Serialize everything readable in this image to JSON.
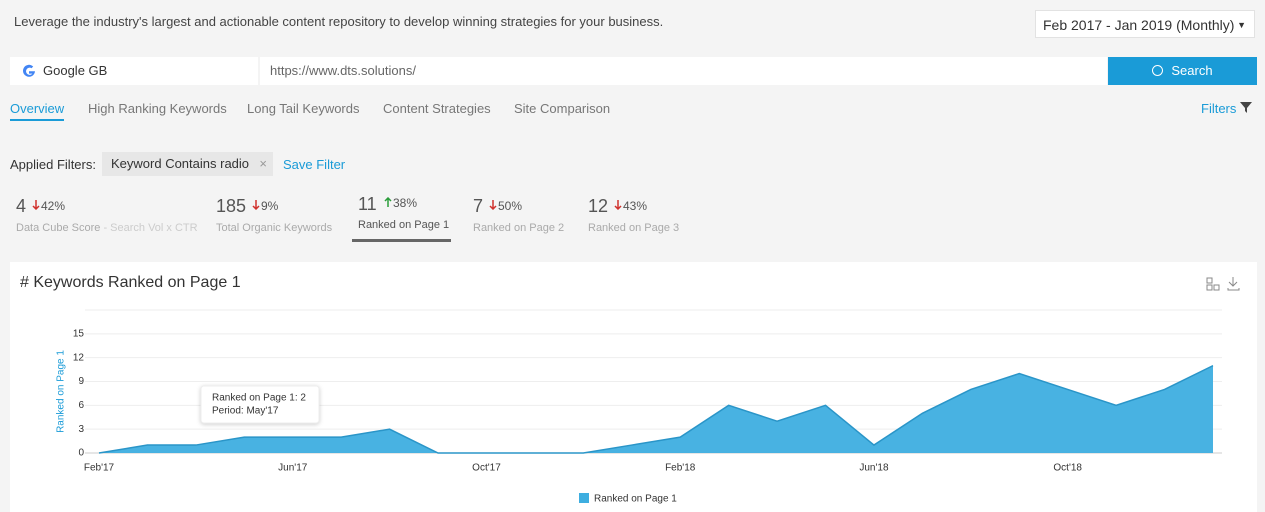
{
  "header": {
    "description": "Leverage the industry's largest and actionable content repository to develop winning strategies for your business.",
    "date_range": "Feb 2017 - Jan 2019 (Monthly)"
  },
  "search": {
    "engine": "Google GB",
    "url": "https://www.dts.solutions/",
    "button": "Search"
  },
  "tabs": [
    "Overview",
    "High Ranking Keywords",
    "Long Tail Keywords",
    "Content Strategies",
    "Site Comparison"
  ],
  "active_tab": 0,
  "filters_link": "Filters",
  "applied_filters": {
    "label": "Applied Filters:",
    "chips": [
      "Keyword Contains radio"
    ],
    "save": "Save Filter"
  },
  "metrics": [
    {
      "value": 4,
      "direction": "down",
      "change": "42%",
      "label": "Data Cube Score",
      "sublabel": "- Search Vol x CTR"
    },
    {
      "value": 185,
      "direction": "down",
      "change": "9%",
      "label": "Total Organic Keywords"
    },
    {
      "value": 11,
      "direction": "up",
      "change": "38%",
      "label": "Ranked on Page 1"
    },
    {
      "value": 7,
      "direction": "down",
      "change": "50%",
      "label": "Ranked on Page 2"
    },
    {
      "value": 12,
      "direction": "down",
      "change": "43%",
      "label": "Ranked on Page 3"
    }
  ],
  "active_metric": 2,
  "chart_data": {
    "type": "area",
    "title": "# Keywords Ranked on Page 1",
    "y_label": "Ranked on Page 1",
    "categories": [
      "Feb'17",
      null,
      null,
      null,
      "Jun'17",
      null,
      null,
      null,
      "Oct'17",
      null,
      null,
      null,
      "Feb'18",
      null,
      null,
      null,
      "Jun'18",
      null,
      null,
      null,
      "Oct'18",
      null,
      null,
      null
    ],
    "series": [
      {
        "name": "Ranked on Page 1",
        "color": "#3eaee0",
        "values": [
          0,
          1,
          1,
          2,
          2,
          2,
          3,
          0,
          0,
          0,
          0,
          1,
          2,
          6,
          4,
          6,
          1,
          5,
          8,
          10,
          8,
          6,
          8,
          11
        ]
      }
    ],
    "ylim": [
      0,
      18
    ],
    "yticks": [
      0,
      3,
      6,
      9,
      12,
      15
    ],
    "grid": true,
    "tooltip": {
      "line1": "Ranked on Page 1: 2",
      "line2": "Period: May'17"
    }
  }
}
